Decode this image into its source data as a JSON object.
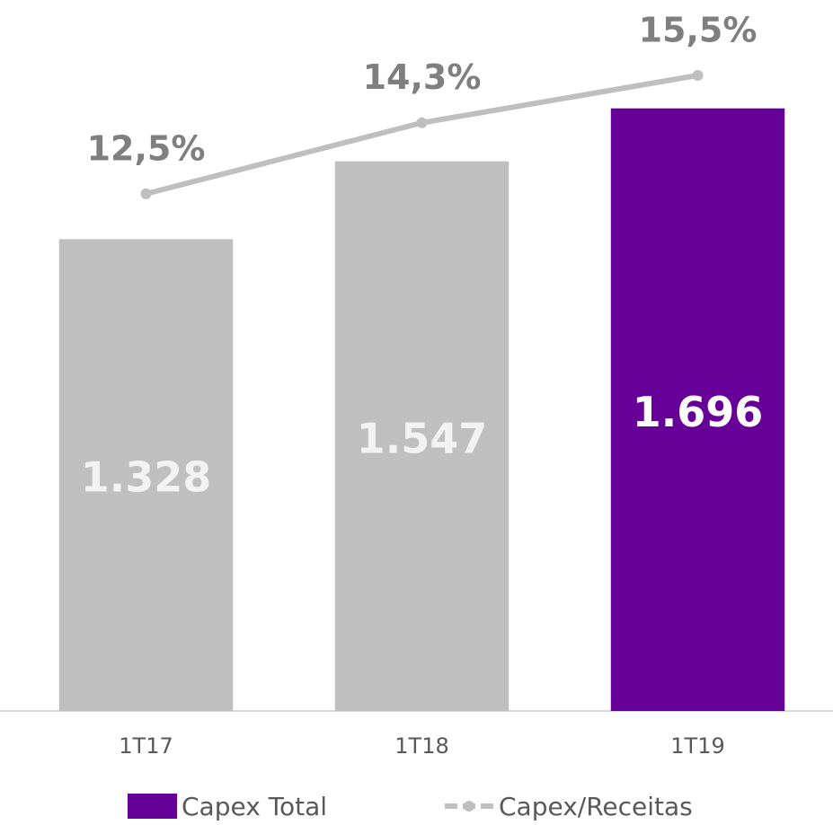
{
  "chart_data": {
    "type": "bar+line",
    "categories": [
      "1T17",
      "1T18",
      "1T19"
    ],
    "series": [
      {
        "name": "Capex Total",
        "type": "bar",
        "color": "#660099",
        "colors": [
          "#bfbfbf",
          "#bfbfbf",
          "#660099"
        ],
        "values": [
          1328,
          1547,
          1696
        ],
        "value_labels": [
          "1.328",
          "1.547",
          "1.696"
        ]
      },
      {
        "name": "Capex/Receitas",
        "type": "line",
        "axis": "y2",
        "color": "#bfbfbf",
        "values": [
          12.5,
          14.3,
          15.5
        ],
        "value_labels": [
          "12,5%",
          "14,3%",
          "15,5%"
        ]
      }
    ],
    "ylim": [
      0,
      1900
    ],
    "y2lim": [
      -0.6,
      16.5
    ],
    "legend": "bottom"
  }
}
